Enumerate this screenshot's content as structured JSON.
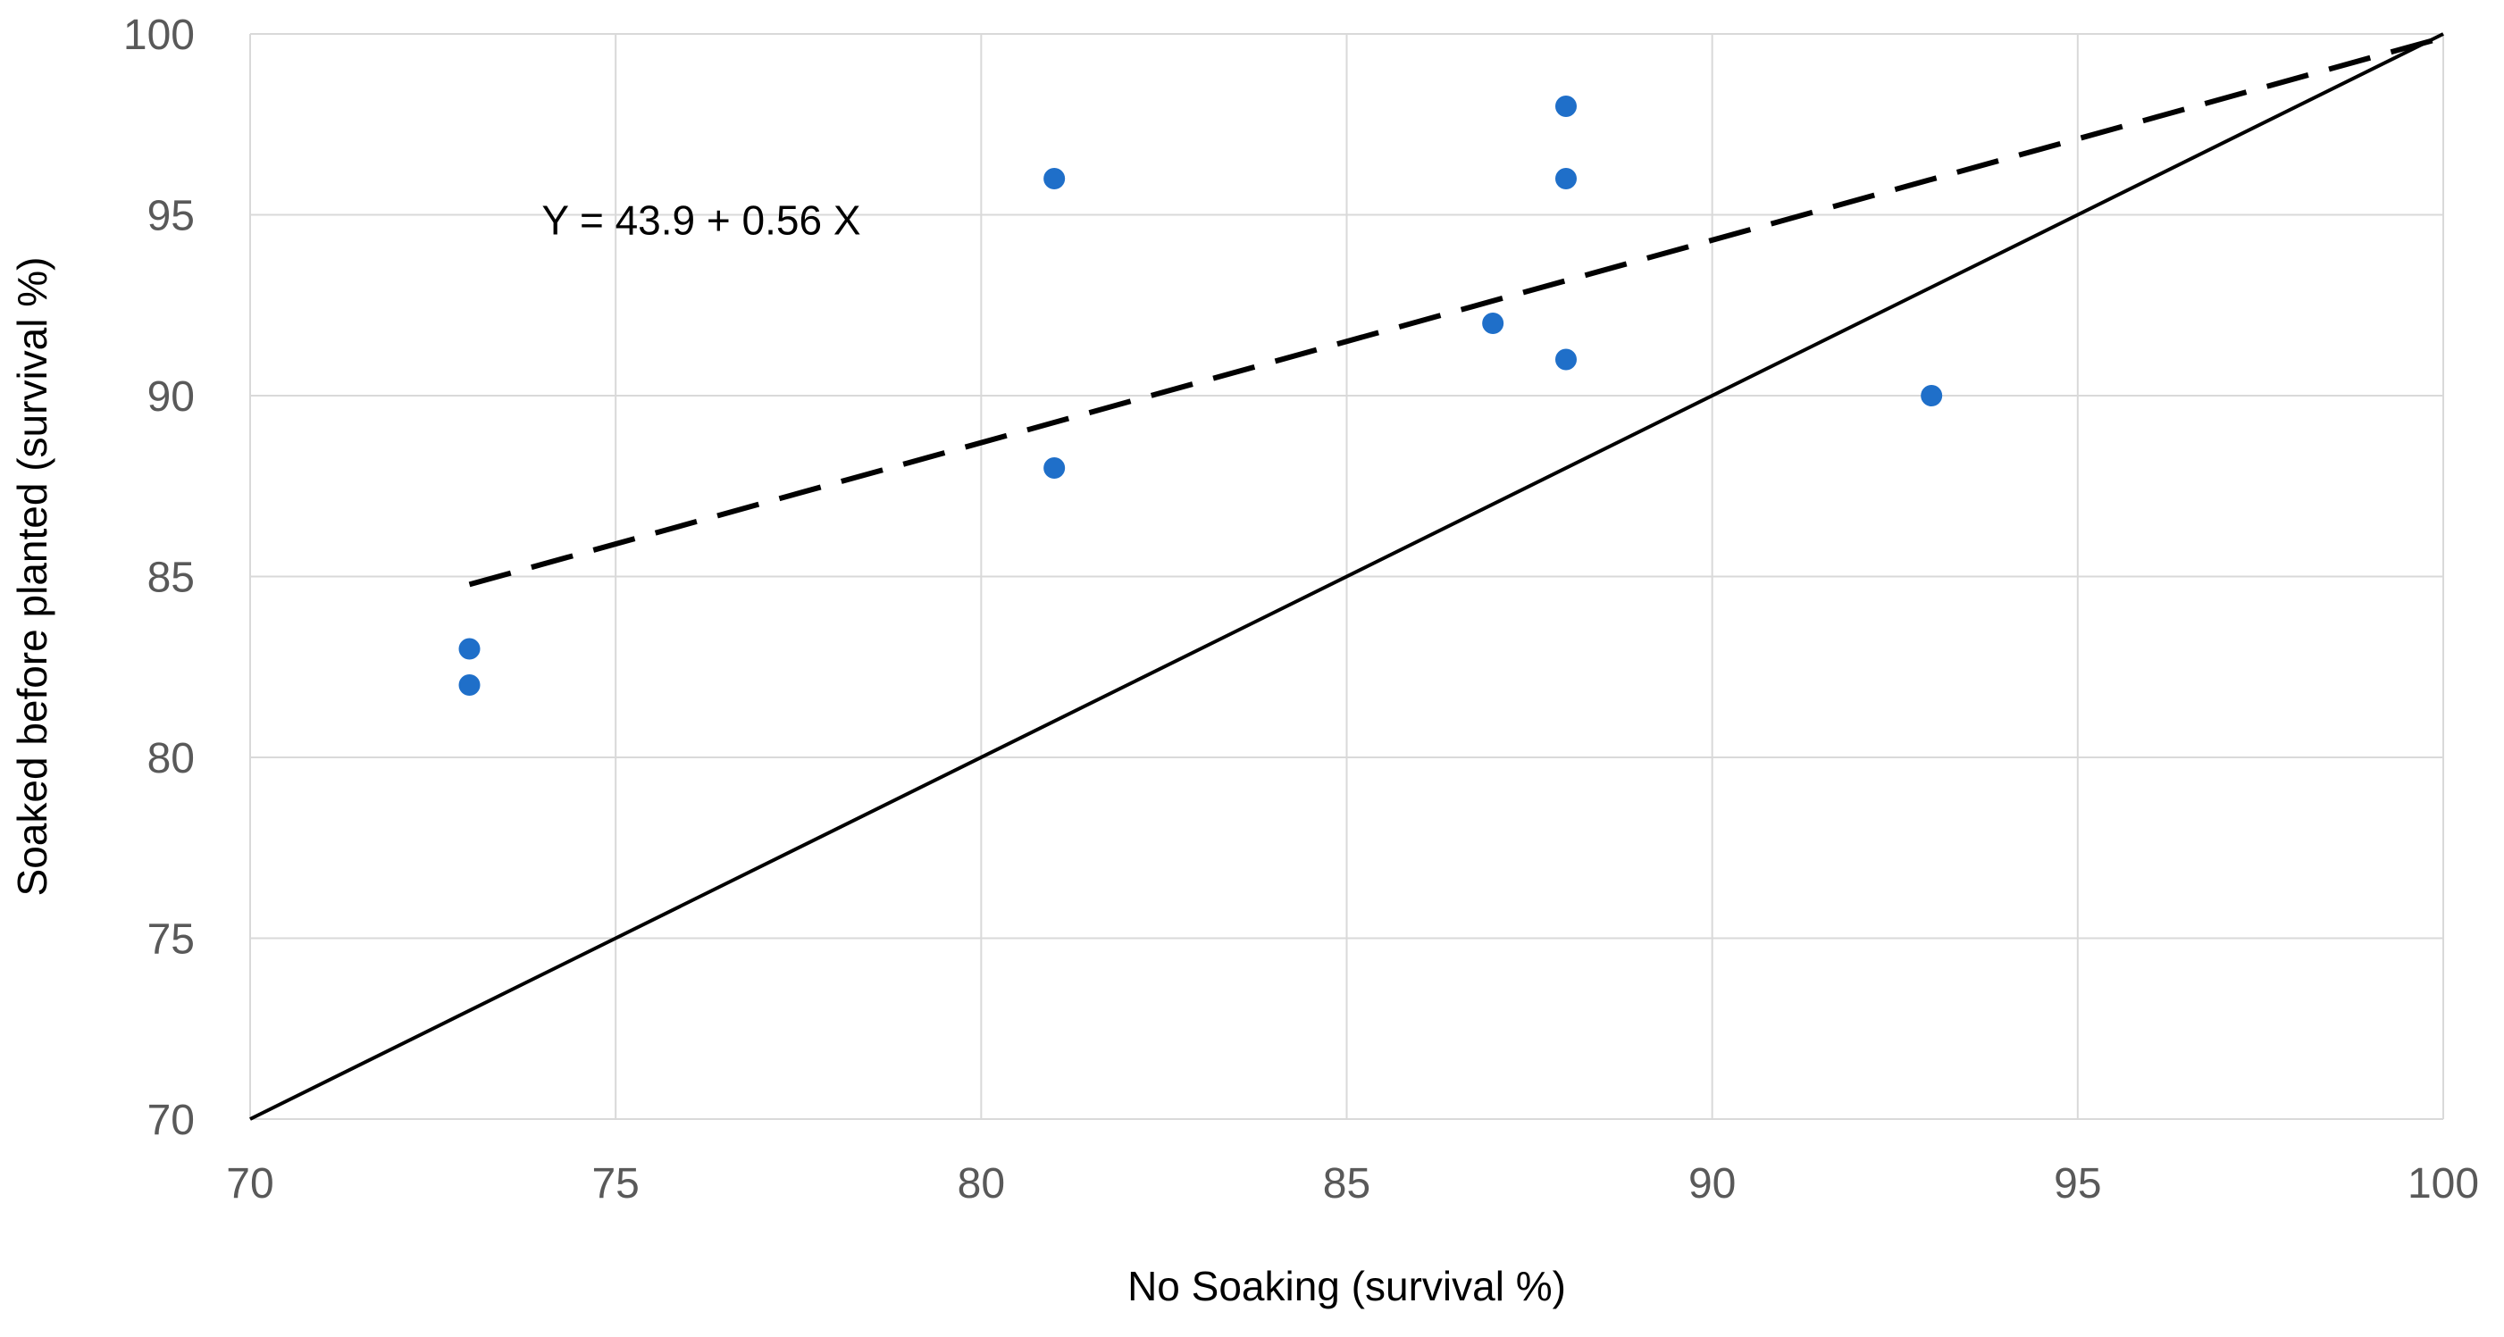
{
  "chart_data": {
    "type": "scatter",
    "title": "",
    "xlabel": "No Soaking (survival %)",
    "ylabel": "Soaked before planted (survival %)",
    "xlim": [
      70,
      100
    ],
    "ylim": [
      70,
      100
    ],
    "x_ticks": [
      70,
      75,
      80,
      85,
      90,
      95,
      100
    ],
    "y_ticks": [
      70,
      75,
      80,
      85,
      90,
      95,
      100
    ],
    "x_tick_labels": [
      "70",
      "75",
      "80",
      "85",
      "90",
      "95",
      "100"
    ],
    "y_tick_labels": [
      "70",
      "75",
      "80",
      "85",
      "90",
      "95",
      "100"
    ],
    "grid": true,
    "series": [
      {
        "name": "Observations",
        "color": "#1f6fc9",
        "x": [
          73,
          73,
          81,
          81,
          87,
          88,
          88,
          88,
          93
        ],
        "y": [
          83,
          82,
          96,
          88,
          92,
          98,
          96,
          91,
          90
        ]
      }
    ],
    "lines": [
      {
        "name": "regression",
        "style": "dashed",
        "intercept": 43.9,
        "slope": 0.56,
        "x_range": [
          73,
          100
        ],
        "color": "#000000"
      },
      {
        "name": "one-to-one",
        "style": "solid",
        "intercept": 0,
        "slope": 1,
        "x_range": [
          70,
          100
        ],
        "color": "#000000"
      }
    ],
    "annotations": [
      {
        "text": "Y = 43.9 + 0.56 X",
        "x": 74.0,
        "y": 95.0
      }
    ]
  }
}
